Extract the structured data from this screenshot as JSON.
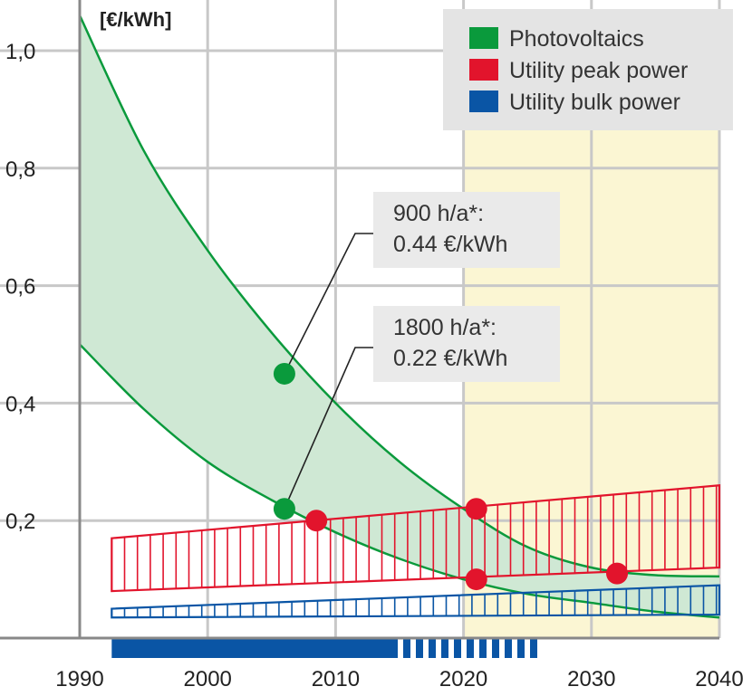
{
  "chart_data": {
    "type": "area",
    "ylabel": "[€/kWh]",
    "xlim": [
      1990,
      2040
    ],
    "ylim": [
      0,
      1.0
    ],
    "x_ticks": [
      "1990",
      "2000",
      "2010",
      "2020",
      "2030",
      "2040"
    ],
    "x_tick_values": [
      1990,
      2000,
      2010,
      2020,
      2030,
      2040
    ],
    "y_ticks": [
      "0,2",
      "0,4",
      "0,6",
      "0,8",
      "1,0"
    ],
    "y_tick_values": [
      0.2,
      0.4,
      0.6,
      0.8,
      1.0
    ],
    "grid": true,
    "highlight_range": [
      2020,
      2040
    ],
    "legend_position": "top-right",
    "legend": [
      {
        "label": "Photovoltaics",
        "color": "#0a9a3c"
      },
      {
        "label": "Utility peak power",
        "color": "#e2142c"
      },
      {
        "label": "Utility bulk power",
        "color": "#0a55a5"
      }
    ],
    "series": [
      {
        "name": "Photovoltaics",
        "band": true,
        "x": [
          1990,
          1995,
          2000,
          2005,
          2010,
          2015,
          2020,
          2025,
          2030,
          2035,
          2040
        ],
        "upper": [
          1.06,
          0.83,
          0.66,
          0.52,
          0.4,
          0.3,
          0.22,
          0.155,
          0.12,
          0.107,
          0.105
        ],
        "lower": [
          0.5,
          0.39,
          0.3,
          0.235,
          0.18,
          0.135,
          0.1,
          0.075,
          0.06,
          0.045,
          0.035
        ]
      },
      {
        "name": "Utility peak power",
        "band": true,
        "hatched": true,
        "x": [
          1992.5,
          2040
        ],
        "upper": [
          0.17,
          0.26
        ],
        "lower": [
          0.08,
          0.12
        ]
      },
      {
        "name": "Utility bulk power",
        "band": true,
        "hatched": true,
        "x": [
          1992.5,
          2040
        ],
        "upper": [
          0.05,
          0.09
        ],
        "lower": [
          0.035,
          0.04
        ]
      }
    ],
    "points": [
      {
        "series": "Photovoltaics",
        "x": 2006,
        "y": 0.45
      },
      {
        "series": "Photovoltaics",
        "x": 2006,
        "y": 0.22
      },
      {
        "series": "Utility peak power",
        "x": 2008.5,
        "y": 0.2
      },
      {
        "series": "Utility peak power",
        "x": 2021,
        "y": 0.22
      },
      {
        "series": "Utility peak power",
        "x": 2021,
        "y": 0.1
      },
      {
        "series": "Utility peak power",
        "x": 2032,
        "y": 0.11
      }
    ],
    "annotations": [
      {
        "line1": "900 h/a*:",
        "line2": "0.44 €/kWh",
        "target_x": 2006,
        "target_y": 0.45
      },
      {
        "line1": "1800 h/a*:",
        "line2": "0.22 €/kWh",
        "target_x": 2006,
        "target_y": 0.22
      }
    ],
    "timeline_bar": {
      "solid": [
        1992.5,
        2015
      ],
      "dashed": [
        2015,
        2026
      ],
      "color": "#0a55a5"
    }
  }
}
